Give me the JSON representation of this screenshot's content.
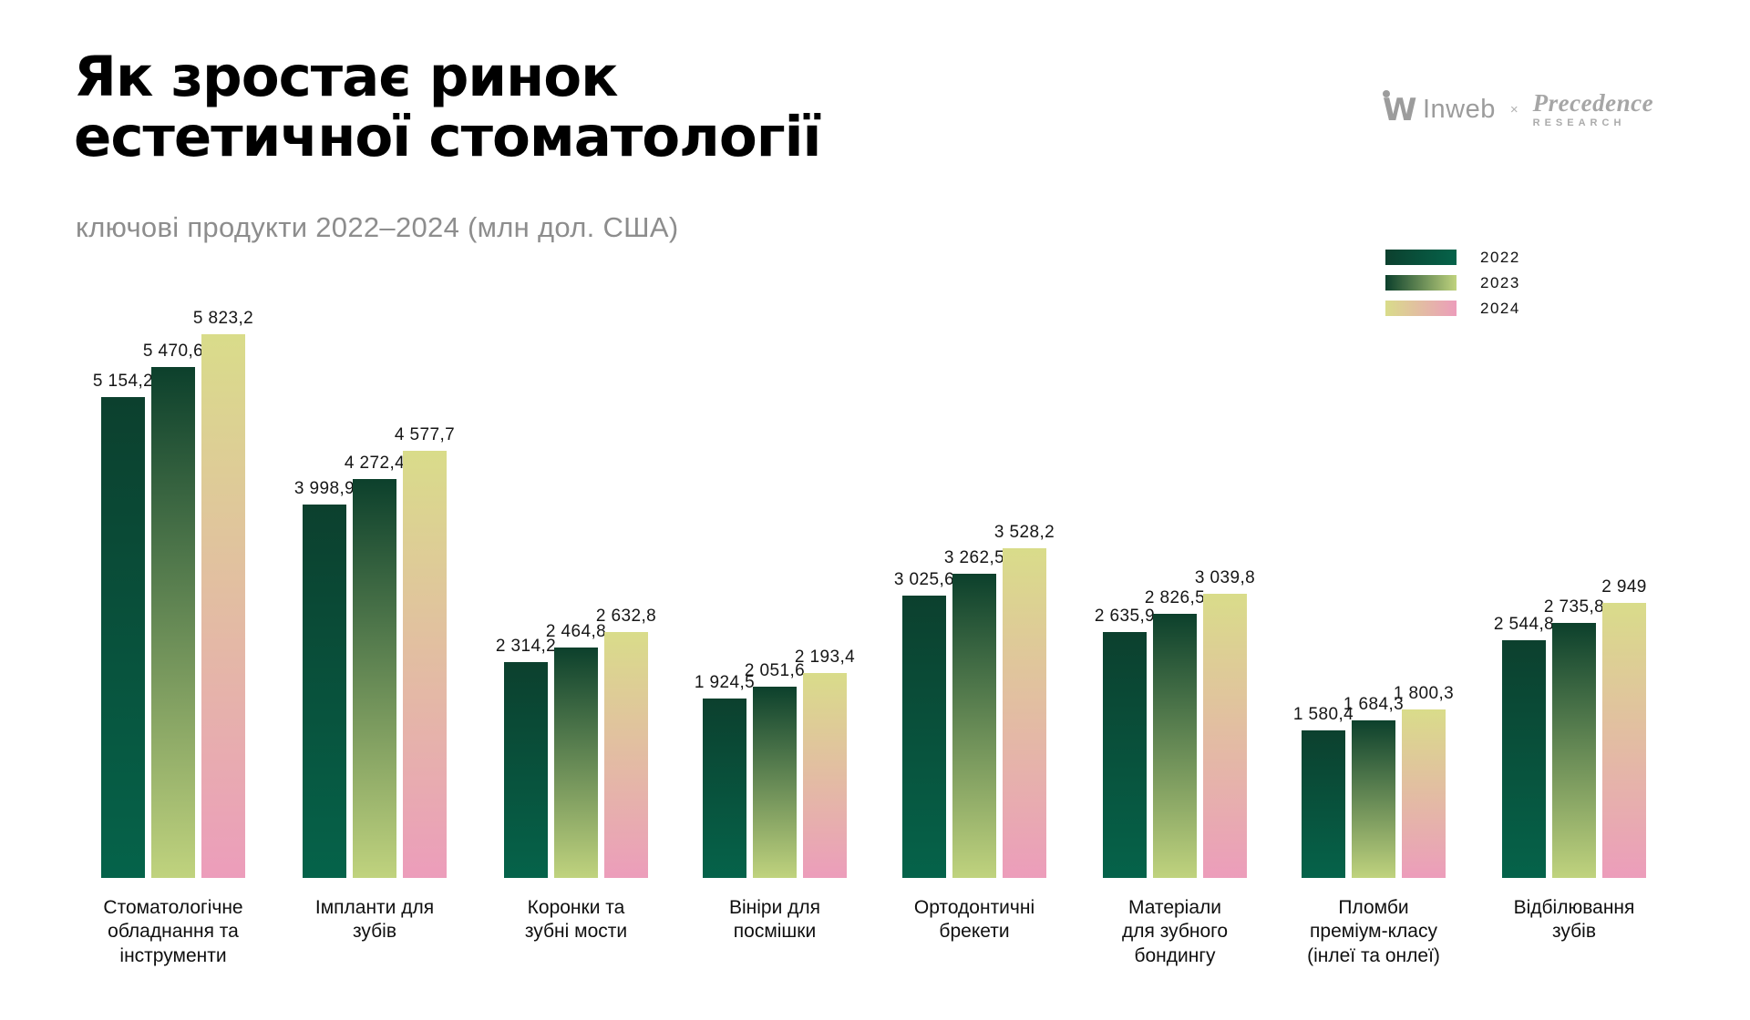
{
  "title": {
    "line1": "Як зростає ринок",
    "line2": "естетичної стоматології"
  },
  "subtitle": "ключові продукти 2022–2024 (млн дол. США)",
  "logo": {
    "inweb_mark": "W",
    "inweb": "Inweb",
    "separator": "×",
    "precedence": "Precedence",
    "research": "RESEARCH"
  },
  "chart_data": {
    "type": "bar",
    "title": "Як зростає ринок естетичної стоматології",
    "subtitle": "ключові продукти 2022–2024 (млн дол. США)",
    "unit": "млн дол. США",
    "legend_position": "top-right",
    "value_axis_max": 5823.2,
    "categories": [
      {
        "name": "Стоматологічне обладнання та інструменти",
        "lines": [
          "Стоматологічне",
          "обладнання та",
          "інструменти"
        ]
      },
      {
        "name": "Імпланти для зубів",
        "lines": [
          "Імпланти для",
          "зубів"
        ]
      },
      {
        "name": "Коронки та зубні мости",
        "lines": [
          "Коронки та",
          "зубні мости"
        ]
      },
      {
        "name": "Вініри для посмішки",
        "lines": [
          "Вініри для",
          "посмішки"
        ]
      },
      {
        "name": "Ортодонтичні брекети",
        "lines": [
          "Ортодонтичні",
          "брекети"
        ]
      },
      {
        "name": "Матеріали для зубного бондингу",
        "lines": [
          "Матеріали",
          "для зубного",
          "бондингу"
        ]
      },
      {
        "name": "Пломби преміум-класу (інлеї та онлеї)",
        "lines": [
          "Пломби",
          "преміум-класу",
          "(інлеї та онлеї)"
        ]
      },
      {
        "name": "Відбілювання зубів",
        "lines": [
          "Відбілювання",
          "зубів"
        ]
      }
    ],
    "series": [
      {
        "name": "2022",
        "gradient_top": "#0C402E",
        "gradient_bottom": "#05634A",
        "values": [
          5154.2,
          3998.9,
          2314.2,
          1924.5,
          3025.6,
          2635.9,
          1580.4,
          2544.8
        ],
        "labels": [
          "5 154,2",
          "3 998,9",
          "2 314,2",
          "1 924,5",
          "3 025,6",
          "2 635,9",
          "1 580,4",
          "2 544,8"
        ]
      },
      {
        "name": "2023",
        "gradient_top": "#0C402C",
        "gradient_bottom": "#C0D37E",
        "values": [
          5470.6,
          4272.4,
          2464.8,
          2051.6,
          3262.5,
          2826.5,
          1684.3,
          2735.8
        ],
        "labels": [
          "5 470,6",
          "4 272,4",
          "2 464,8",
          "2 051,6",
          "3 262,5",
          "2 826,5",
          "1 684,3",
          "2 735,8"
        ]
      },
      {
        "name": "2024",
        "gradient_top": "#D9DC8A",
        "gradient_bottom": "#EC9DBB",
        "values": [
          5823.2,
          4577.7,
          2632.8,
          2193.4,
          3528.2,
          3039.8,
          1800.3,
          2949
        ],
        "labels": [
          "5 823,2",
          "4 577,7",
          "2 632,8",
          "2 193,4",
          "3 528,2",
          "3 039,8",
          "1 800,3",
          "2 949"
        ]
      }
    ]
  }
}
